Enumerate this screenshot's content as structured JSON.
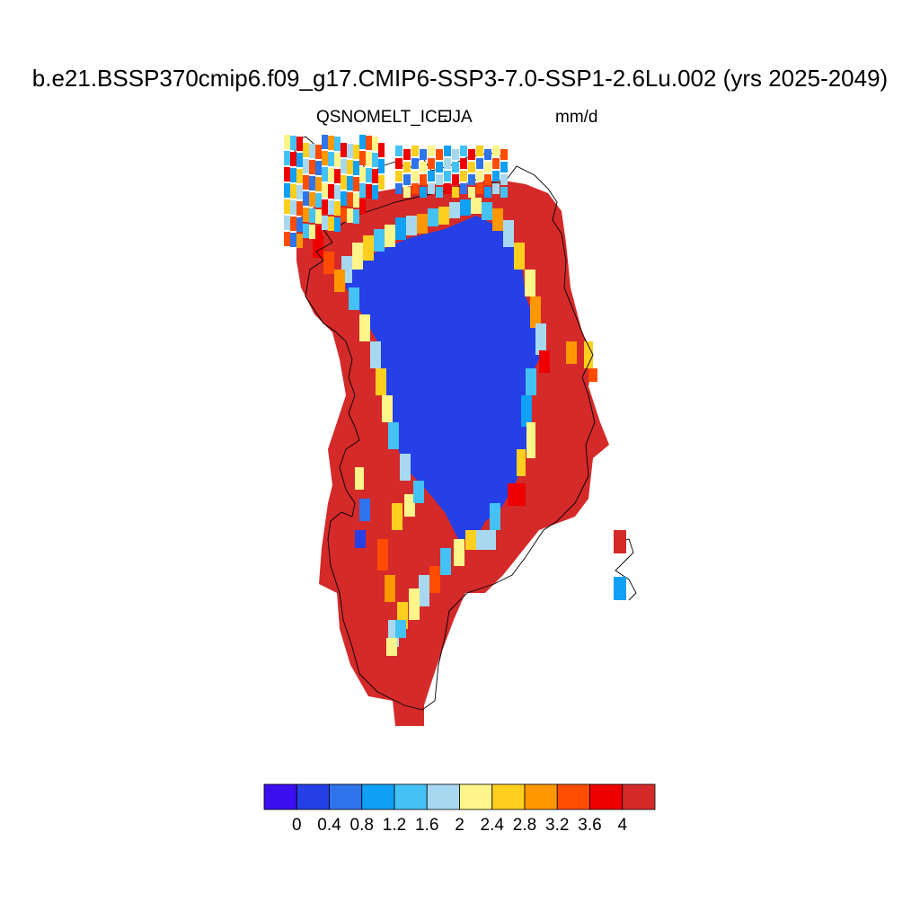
{
  "title": "b.e21.BSSP370cmip6.f09_g17.CMIP6-SSP3-7.0-SSP1-2.6Lu.002 (yrs 2025-2049)",
  "subtitle_left": "QSNOMELT_ICE",
  "subtitle_center": "JJA",
  "subtitle_right": "mm/d",
  "colorbar": {
    "colors": [
      "#3b0ff0",
      "#2440e6",
      "#2f74eb",
      "#10a0f5",
      "#44c2f5",
      "#a8d8f0",
      "#fff58a",
      "#ffcf20",
      "#ff9700",
      "#ff4c00",
      "#ee0000",
      "#d42a2a"
    ],
    "labels": [
      "0",
      "0.4",
      "0.8",
      "1.2",
      "1.6",
      "2",
      "2.4",
      "2.8",
      "3.2",
      "3.6",
      "4"
    ]
  },
  "map": {
    "region": "Greenland",
    "interior_class": "#2440e6",
    "margin_class": "#d42a2a"
  }
}
